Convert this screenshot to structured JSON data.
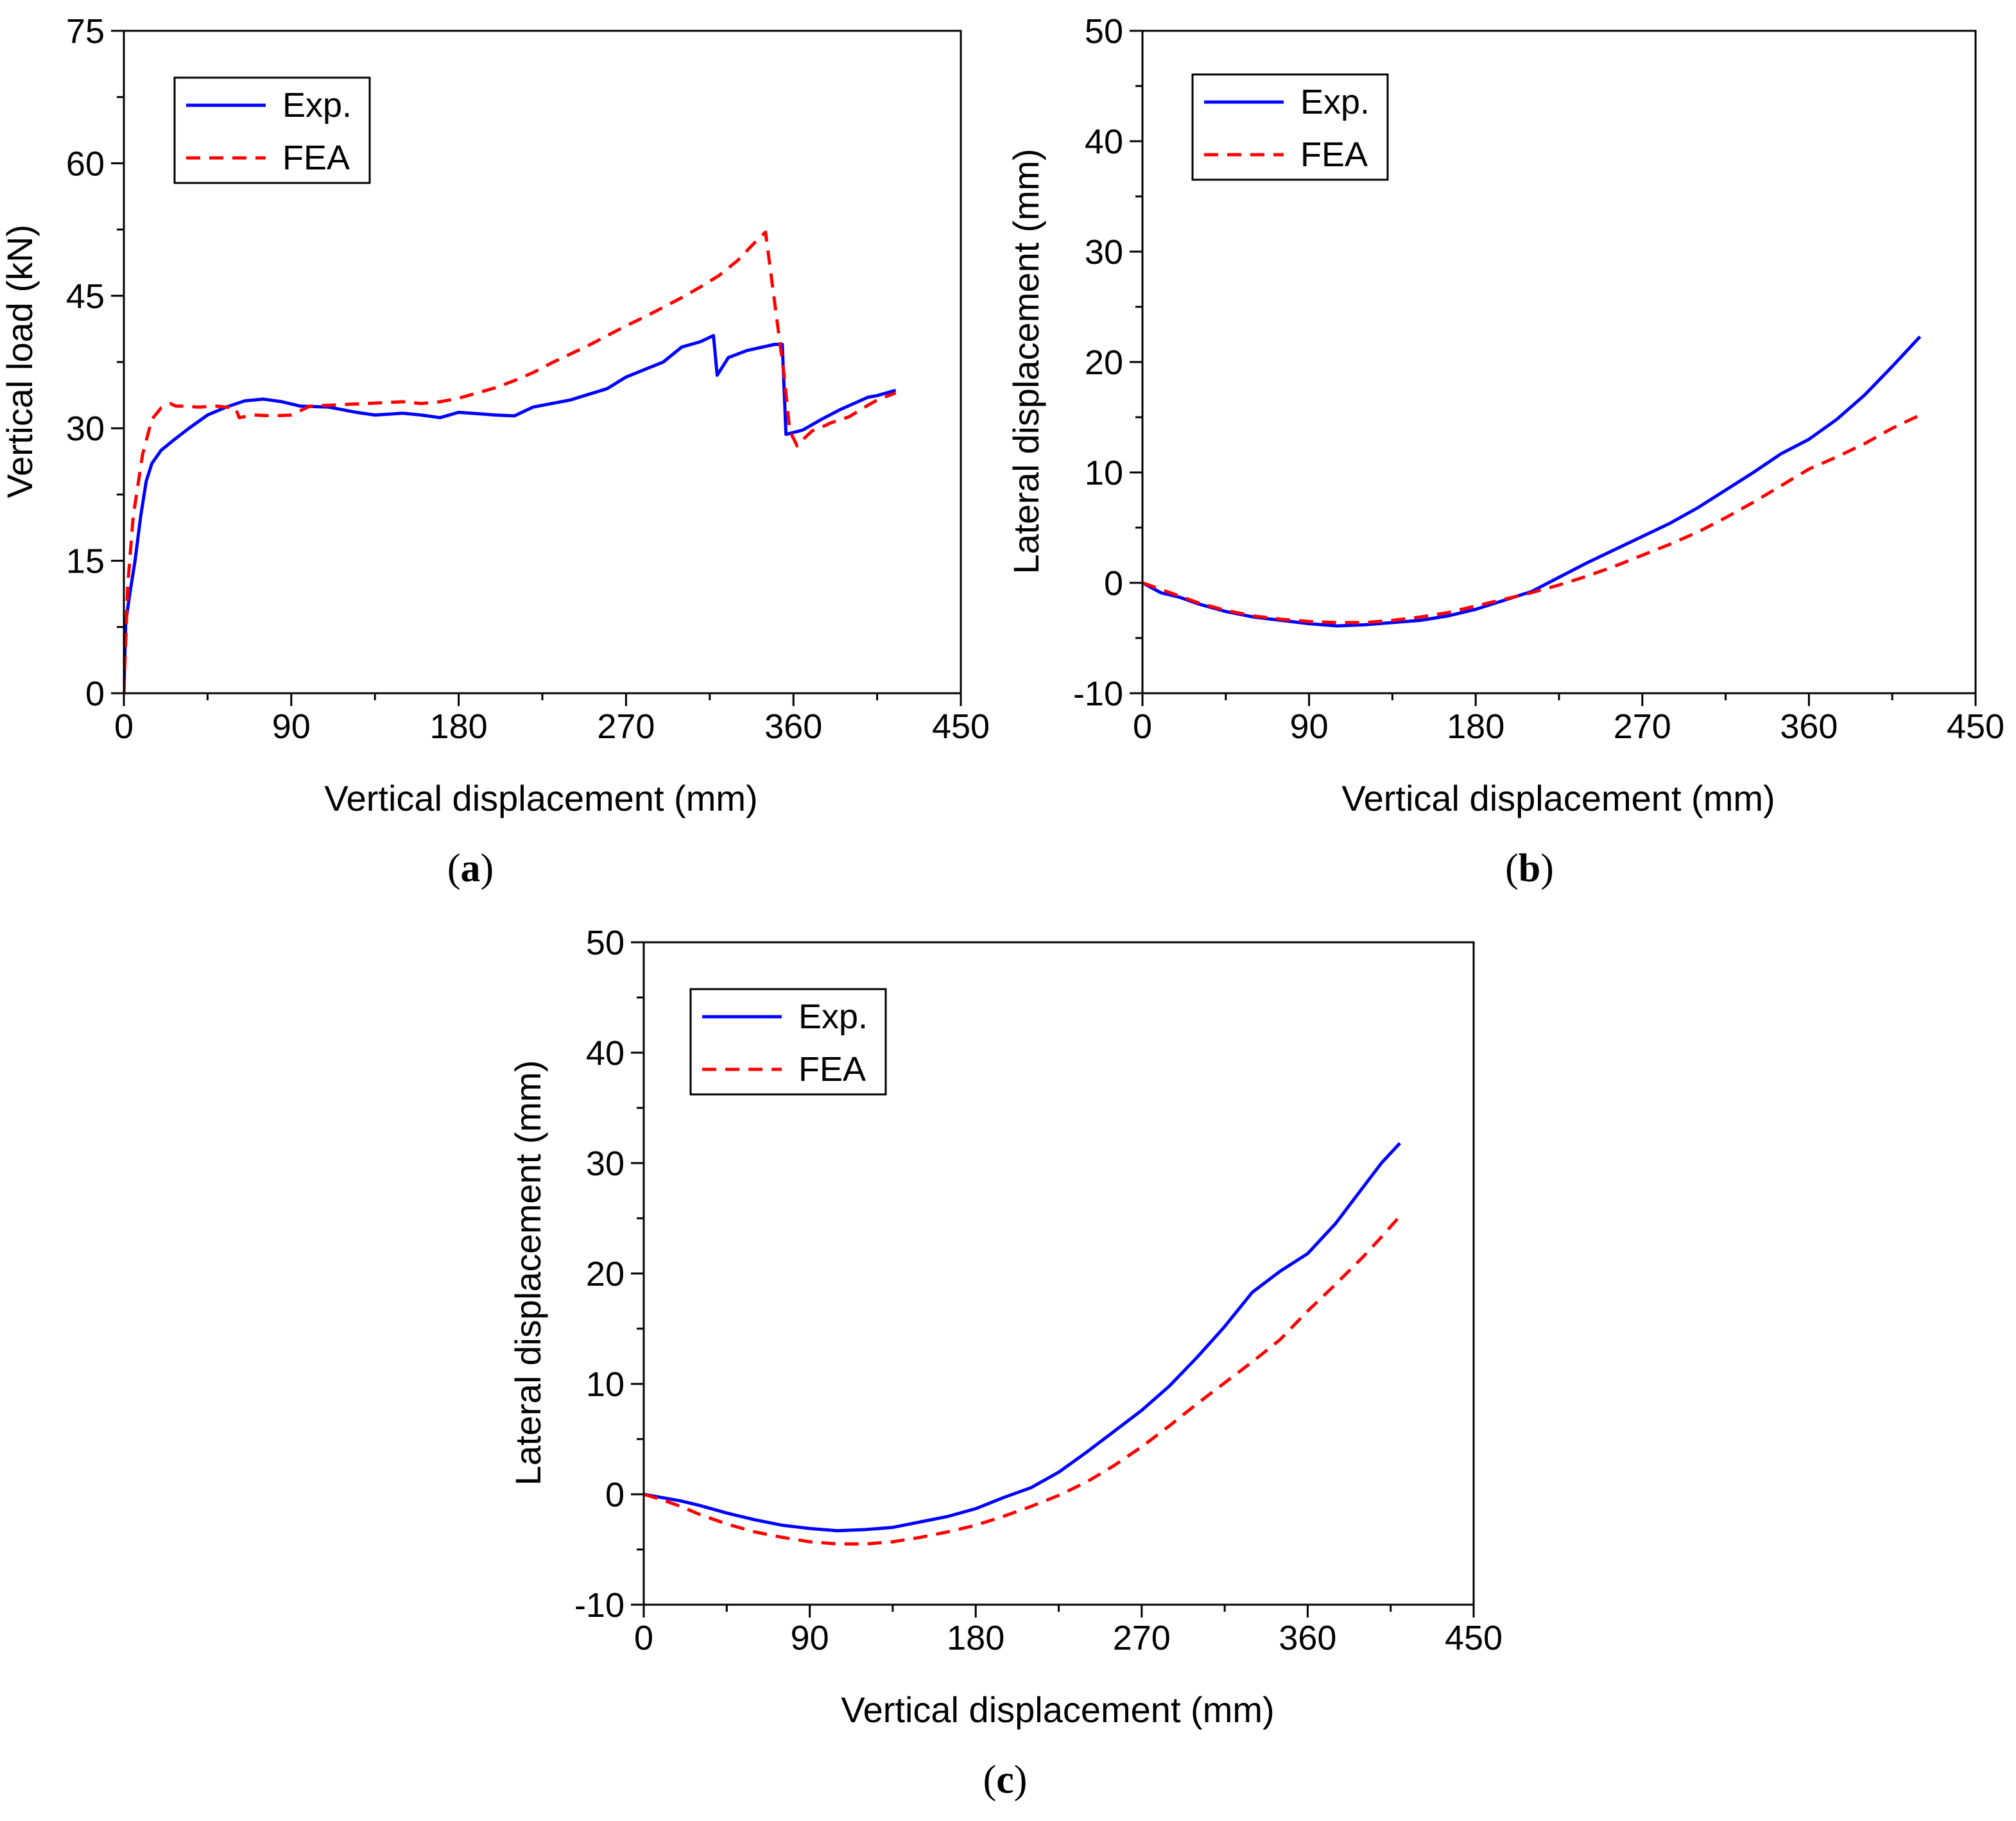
{
  "colors": {
    "exp": "#0000ff",
    "fea": "#ff0000",
    "axis": "#000000",
    "background": "#ffffff"
  },
  "chart_data": [
    {
      "type": "line",
      "panel_label": "a",
      "xlabel": "Vertical displacement (mm)",
      "ylabel": "Vertical load (kN)",
      "xlim": [
        0,
        450
      ],
      "ylim": [
        0,
        75
      ],
      "xticks": [
        0,
        90,
        180,
        270,
        360,
        450
      ],
      "yticks": [
        0,
        15,
        30,
        45,
        60,
        75
      ],
      "grid": false,
      "legend_position": "top-left",
      "series": [
        {
          "name": "Exp.",
          "style": "solid",
          "color": "#0000ff",
          "x": [
            0,
            1,
            3,
            6,
            9,
            12,
            15,
            20,
            27,
            35,
            45,
            55,
            65,
            75,
            85,
            95,
            110,
            125,
            135,
            150,
            160,
            170,
            180,
            200,
            210,
            220,
            240,
            260,
            270,
            290,
            300,
            310,
            317,
            319,
            325,
            335,
            350,
            354,
            356,
            365,
            375,
            385,
            400,
            405,
            415
          ],
          "y": [
            0,
            8,
            11,
            15,
            20,
            24,
            26,
            27.5,
            28.7,
            30,
            31.5,
            32.4,
            33.1,
            33.3,
            33.0,
            32.5,
            32.4,
            31.8,
            31.5,
            31.7,
            31.5,
            31.2,
            31.8,
            31.5,
            31.4,
            32.4,
            33.2,
            34.5,
            35.8,
            37.5,
            39.2,
            39.8,
            40.5,
            36.0,
            38.0,
            38.8,
            39.5,
            39.5,
            29.3,
            29.8,
            31.0,
            32.1,
            33.5,
            33.7,
            34.3
          ]
        },
        {
          "name": "FEA",
          "style": "dashed",
          "color": "#ff0000",
          "x": [
            0,
            2,
            5,
            10,
            15,
            20,
            25,
            28,
            32,
            40,
            50,
            60,
            62,
            70,
            80,
            90,
            100,
            110,
            120,
            130,
            140,
            150,
            160,
            170,
            180,
            190,
            200,
            210,
            220,
            230,
            240,
            250,
            260,
            270,
            280,
            290,
            300,
            310,
            320,
            330,
            340,
            345,
            355,
            358,
            362,
            365,
            370,
            375,
            380,
            390,
            400,
            405,
            415
          ],
          "y": [
            0,
            12,
            20,
            27,
            31,
            32.3,
            32.8,
            32.5,
            32.5,
            32.4,
            32.5,
            32.3,
            31.2,
            31.5,
            31.4,
            31.5,
            32.5,
            32.6,
            32.7,
            32.8,
            32.9,
            33.0,
            32.8,
            33.0,
            33.4,
            34.0,
            34.6,
            35.4,
            36.3,
            37.4,
            38.4,
            39.4,
            40.5,
            41.6,
            42.6,
            43.7,
            44.8,
            46.0,
            47.3,
            49.0,
            51.2,
            52.2,
            36.0,
            29.7,
            28.0,
            28.7,
            29.7,
            30.1,
            30.6,
            31.3,
            32.6,
            33.2,
            34.0
          ]
        }
      ],
      "legend": [
        "Exp.",
        "FEA"
      ]
    },
    {
      "type": "line",
      "panel_label": "b",
      "xlabel": "Vertical displacement (mm)",
      "ylabel": "Lateral displacement (mm)",
      "xlim": [
        0,
        450
      ],
      "ylim": [
        -10,
        50
      ],
      "xticks": [
        0,
        90,
        180,
        270,
        360,
        450
      ],
      "yticks": [
        -10,
        0,
        10,
        20,
        30,
        40,
        50
      ],
      "grid": false,
      "legend_position": "top-left",
      "series": [
        {
          "name": "Exp.",
          "style": "solid",
          "color": "#0000ff",
          "x": [
            0,
            10,
            20,
            30,
            45,
            60,
            75,
            90,
            105,
            120,
            135,
            150,
            165,
            180,
            195,
            210,
            225,
            240,
            255,
            270,
            285,
            300,
            315,
            330,
            345,
            360,
            375,
            390,
            405,
            420
          ],
          "y": [
            0,
            -0.9,
            -1.3,
            -1.9,
            -2.6,
            -3.1,
            -3.4,
            -3.7,
            -3.9,
            -3.8,
            -3.6,
            -3.4,
            -3.0,
            -2.4,
            -1.6,
            -0.8,
            0.5,
            1.8,
            3.0,
            4.2,
            5.4,
            6.8,
            8.4,
            10.0,
            11.7,
            13.0,
            14.8,
            17.0,
            19.6,
            22.3
          ]
        },
        {
          "name": "FEA",
          "style": "dashed",
          "color": "#ff0000",
          "x": [
            0,
            10,
            20,
            30,
            45,
            60,
            75,
            90,
            105,
            120,
            135,
            150,
            165,
            180,
            195,
            210,
            225,
            240,
            255,
            270,
            285,
            300,
            315,
            330,
            345,
            360,
            375,
            390,
            405,
            420
          ],
          "y": [
            0,
            -0.6,
            -1.2,
            -1.8,
            -2.5,
            -3.0,
            -3.3,
            -3.5,
            -3.6,
            -3.6,
            -3.4,
            -3.1,
            -2.7,
            -2.1,
            -1.5,
            -0.9,
            -0.2,
            0.6,
            1.5,
            2.5,
            3.5,
            4.6,
            5.9,
            7.3,
            8.8,
            10.3,
            11.4,
            12.6,
            14.0,
            15.2
          ]
        }
      ],
      "legend": [
        "Exp.",
        "FEA"
      ]
    },
    {
      "type": "line",
      "panel_label": "c",
      "xlabel": "Vertical displacement (mm)",
      "ylabel": "Lateral displacement (mm)",
      "xlim": [
        0,
        450
      ],
      "ylim": [
        -10,
        50
      ],
      "xticks": [
        0,
        90,
        180,
        270,
        360,
        450
      ],
      "yticks": [
        -10,
        0,
        10,
        20,
        30,
        40,
        50
      ],
      "grid": false,
      "legend_position": "top-left",
      "series": [
        {
          "name": "Exp.",
          "style": "solid",
          "color": "#0000ff",
          "x": [
            0,
            10,
            20,
            30,
            45,
            60,
            75,
            90,
            105,
            120,
            135,
            150,
            165,
            180,
            195,
            210,
            225,
            240,
            255,
            270,
            285,
            300,
            315,
            330,
            345,
            360,
            375,
            390,
            400,
            410
          ],
          "y": [
            0,
            -0.3,
            -0.6,
            -1.0,
            -1.7,
            -2.3,
            -2.8,
            -3.1,
            -3.3,
            -3.2,
            -3.0,
            -2.5,
            -2.0,
            -1.3,
            -0.3,
            0.6,
            2.0,
            3.8,
            5.7,
            7.6,
            9.8,
            12.4,
            15.2,
            18.3,
            20.2,
            21.8,
            24.5,
            27.8,
            30.0,
            31.8
          ]
        },
        {
          "name": "FEA",
          "style": "dashed",
          "color": "#ff0000",
          "x": [
            0,
            10,
            20,
            30,
            45,
            60,
            75,
            90,
            105,
            120,
            135,
            150,
            165,
            180,
            195,
            210,
            225,
            240,
            255,
            270,
            285,
            300,
            315,
            330,
            345,
            360,
            375,
            390,
            400,
            410
          ],
          "y": [
            0,
            -0.5,
            -1.1,
            -1.8,
            -2.7,
            -3.4,
            -3.9,
            -4.3,
            -4.5,
            -4.5,
            -4.3,
            -3.9,
            -3.4,
            -2.8,
            -2.0,
            -1.1,
            -0.1,
            1.1,
            2.6,
            4.3,
            6.2,
            8.2,
            10.1,
            12.0,
            14.0,
            16.6,
            19.0,
            21.5,
            23.3,
            25.2
          ]
        }
      ],
      "legend": [
        "Exp.",
        "FEA"
      ]
    }
  ]
}
